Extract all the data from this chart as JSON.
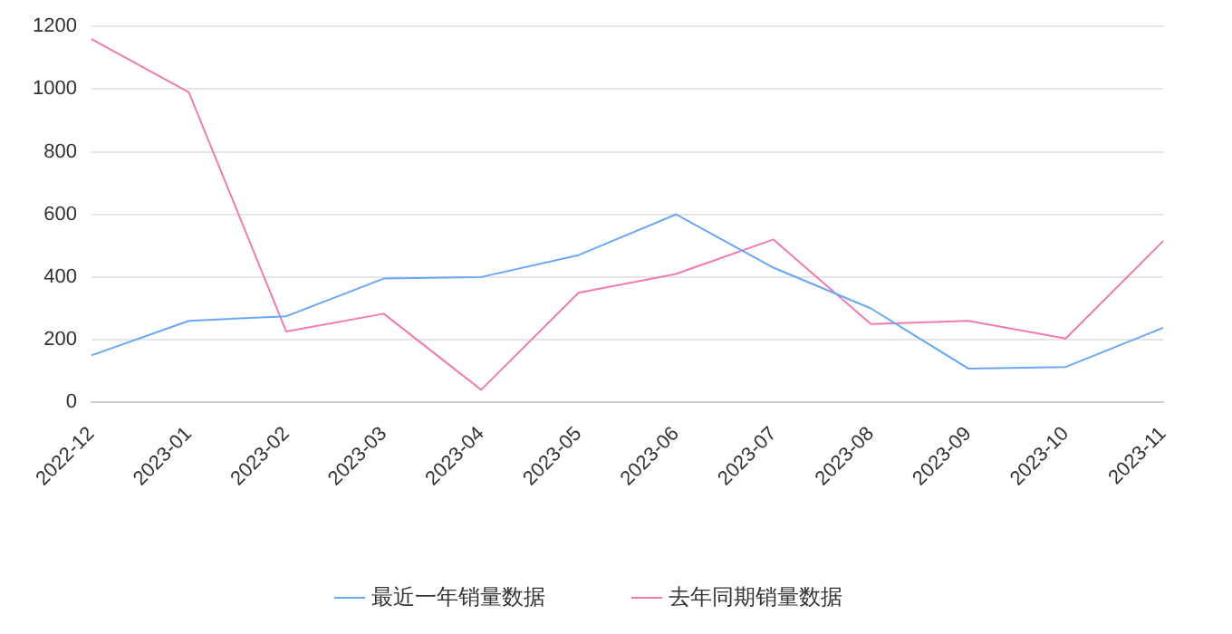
{
  "chart_data": {
    "type": "line",
    "categories": [
      "2022-12",
      "2023-01",
      "2023-02",
      "2023-03",
      "2023-04",
      "2023-05",
      "2023-06",
      "2023-07",
      "2023-08",
      "2023-09",
      "2023-10",
      "2023-11"
    ],
    "series": [
      {
        "name": "最近一年销量数据",
        "color": "#69a7f5",
        "values": [
          150,
          260,
          275,
          395,
          400,
          470,
          600,
          430,
          300,
          108,
          113,
          238
        ]
      },
      {
        "name": "去年同期销量数据",
        "color": "#f27ab2",
        "values": [
          1160,
          990,
          226,
          283,
          40,
          350,
          410,
          520,
          250,
          260,
          204,
          515
        ]
      }
    ],
    "ylim": [
      0,
      1200
    ],
    "yticks": [
      0,
      200,
      400,
      600,
      800,
      1000,
      1200
    ],
    "grid": "y",
    "legend": "bottom",
    "marker": "none",
    "line_style": "solid"
  }
}
